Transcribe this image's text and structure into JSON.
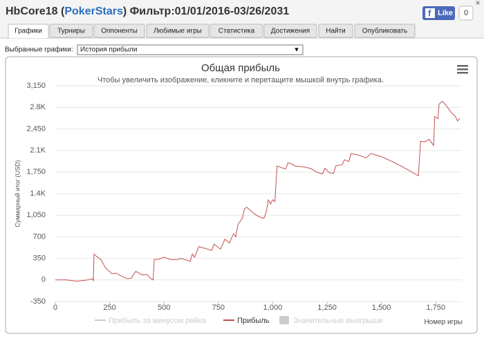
{
  "header": {
    "title_start": "HbCore18 (",
    "site": "PokerStars",
    "title_end": ") Фильтр:01/01/2016-03/26/2031",
    "like": "Like",
    "like_count": "0",
    "close": "×"
  },
  "tabs": [
    "Графики",
    "Турниры",
    "Оппоненты",
    "Любимые игры",
    "Статистика",
    "Достижения",
    "Найти",
    "Опубликовать"
  ],
  "selector": {
    "label": "Выбранные графики:",
    "value": "История прибыли",
    "arrow": "▼"
  },
  "chart_data": {
    "type": "line",
    "title": "Общая прибыль",
    "subtitle": "Чтобы увеличить изображение, кликните и перетащите мышкой внутрь графика.",
    "y_label": "Суммарный итог (USD)",
    "x_label": "Номер игры",
    "xlim": [
      0,
      1870
    ],
    "ylim": [
      -350,
      3150
    ],
    "grid": true,
    "xticks": [
      0,
      250,
      500,
      750,
      {
        "value": 1000,
        "label": "1,000"
      },
      {
        "value": 1250,
        "label": "1,250"
      },
      {
        "value": 1500,
        "label": "1,500"
      },
      {
        "value": 1750,
        "label": "1,750"
      }
    ],
    "yticks": [
      -350,
      0,
      350,
      700,
      {
        "value": 1050,
        "label": "1,050"
      },
      {
        "value": 1400,
        "label": "1.4K"
      },
      {
        "value": 1750,
        "label": "1,750"
      },
      {
        "value": 2100,
        "label": "2.1K"
      },
      {
        "value": 2450,
        "label": "2,450"
      },
      {
        "value": 2800,
        "label": "2.8K"
      },
      {
        "value": 3150,
        "label": "3,150"
      }
    ],
    "x": [
      0,
      50,
      100,
      150,
      170,
      175,
      178,
      190,
      210,
      230,
      260,
      280,
      300,
      330,
      350,
      370,
      400,
      420,
      440,
      450,
      455,
      480,
      500,
      530,
      560,
      580,
      620,
      630,
      640,
      660,
      700,
      720,
      730,
      760,
      780,
      800,
      820,
      830,
      840,
      860,
      870,
      880,
      890,
      900,
      920,
      940,
      960,
      970,
      980,
      990,
      1000,
      1010,
      1020,
      1040,
      1060,
      1070,
      1090,
      1100,
      1150,
      1180,
      1200,
      1230,
      1240,
      1260,
      1280,
      1290,
      1320,
      1330,
      1350,
      1360,
      1400,
      1430,
      1450,
      1500,
      1550,
      1600,
      1630,
      1670,
      1680,
      1700,
      1720,
      1740,
      1745,
      1760,
      1765,
      1780,
      1800,
      1820,
      1840,
      1850,
      1860
    ],
    "series": [
      {
        "name": "Прибыль за минусом рейка",
        "color": "#cccccc",
        "visible": false
      },
      {
        "name": "Прибыль",
        "color": "#c0504d",
        "visible": true,
        "values": [
          0,
          0,
          -20,
          0,
          20,
          -10,
          420,
          380,
          330,
          200,
          100,
          110,
          70,
          20,
          30,
          140,
          80,
          90,
          20,
          0,
          330,
          340,
          370,
          330,
          330,
          350,
          300,
          420,
          370,
          540,
          500,
          480,
          580,
          500,
          660,
          600,
          750,
          700,
          900,
          1000,
          1150,
          1180,
          1150,
          1120,
          1060,
          1020,
          1000,
          1100,
          1300,
          1230,
          1300,
          1270,
          1850,
          1820,
          1800,
          1900,
          1880,
          1850,
          1830,
          1800,
          1750,
          1720,
          1810,
          1740,
          1730,
          1850,
          1870,
          1950,
          1920,
          2050,
          2020,
          1980,
          2050,
          2000,
          1920,
          1830,
          1770,
          1690,
          2250,
          2240,
          2280,
          2180,
          2650,
          2620,
          2850,
          2900,
          2820,
          2720,
          2650,
          2580,
          2620
        ]
      },
      {
        "name": "Значительные выигрыши",
        "color": "#cccccc",
        "visible": false
      }
    ]
  }
}
